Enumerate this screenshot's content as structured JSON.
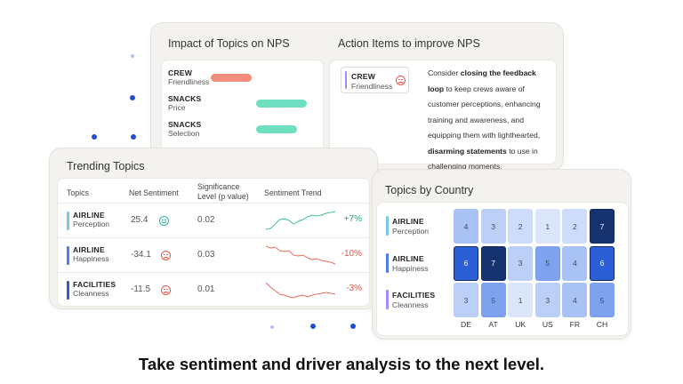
{
  "impact": {
    "title": "Impact of Topics on NPS",
    "rows": [
      {
        "main": "CREW",
        "sub": "Friendliness",
        "value": -2.3,
        "color": "#f48c7e"
      },
      {
        "main": "SNACKS",
        "sub": "Price",
        "value": 2.8,
        "color": "#6ee0c0"
      },
      {
        "main": "SNACKS",
        "sub": "Selection",
        "value": 2.3,
        "color": "#6ee0c0"
      }
    ],
    "ticks": [
      "-3",
      "-2",
      "-1",
      "0",
      "1",
      "2",
      "3"
    ],
    "range": [
      -3,
      3
    ]
  },
  "action": {
    "title": "Action Items to improve NPS",
    "chip": {
      "main": "CREW",
      "sub": "Friendliness"
    },
    "text_1": "Consider ",
    "bold_1": "closing the feedback loop",
    "text_2": " to keep crews aware of customer perceptions, enhancing training and awareness, and equipping them with lighthearted, ",
    "bold_2": "disarming statements",
    "text_3": " to use in challenging moments."
  },
  "trending": {
    "title": "Trending Topics",
    "headers": {
      "topics": "Topics",
      "nps": "Net Sentiment",
      "sig": "Significance Level (p value)",
      "trend": "Sentiment Trend"
    },
    "rows": [
      {
        "main": "AIRLINE",
        "sub": "Perception",
        "nps": "25.4",
        "sentiment": "happy",
        "sig": "0.02",
        "delta": "+7%",
        "delta_color": "#22a87a",
        "stripe": "#7cc7f0",
        "spark_color": "#3cc29a",
        "trend": [
          1,
          0.95,
          0.7,
          0.45,
          0.4,
          0.5,
          0.7,
          0.55,
          0.45,
          0.3,
          0.2,
          0.25,
          0.2,
          0.1,
          0.05,
          0
        ]
      },
      {
        "main": "AIRLINE",
        "sub": "Happiness",
        "nps": "-34.1",
        "sentiment": "sad",
        "sig": "0.03",
        "delta": "-10%",
        "delta_color": "#e8574a",
        "stripe": "#4d7fe8",
        "spark_color": "#ef6b5c",
        "trend": [
          0,
          0.1,
          0.05,
          0.25,
          0.3,
          0.25,
          0.5,
          0.55,
          0.5,
          0.65,
          0.75,
          0.7,
          0.8,
          0.85,
          0.9,
          1
        ]
      },
      {
        "main": "FACILITIES",
        "sub": "Cleanness",
        "nps": "-11.5",
        "sentiment": "sad",
        "sig": "0.01",
        "delta": "-3%",
        "delta_color": "#e8574a",
        "stripe": "#2f5cd8",
        "spark_color": "#ef6b5c",
        "trend": [
          0.1,
          0.35,
          0.55,
          0.75,
          0.8,
          0.9,
          0.95,
          0.85,
          0.8,
          0.9,
          0.8,
          0.75,
          0.7,
          0.65,
          0.7,
          0.75
        ]
      }
    ]
  },
  "country": {
    "title": "Topics by Country",
    "columns": [
      "DE",
      "AT",
      "UK",
      "US",
      "FR",
      "CH"
    ],
    "rows": [
      {
        "main": "AIRLINE",
        "sub": "Perception",
        "stripe": "#7cc7f0",
        "values": [
          "4",
          "3",
          "2",
          "1",
          "2",
          "7"
        ]
      },
      {
        "main": "AIRLINE",
        "sub": "Happiness",
        "stripe": "#4d7fe8",
        "values": [
          "6",
          "7",
          "3",
          "5",
          "4",
          "6"
        ]
      },
      {
        "main": "FACILITIES",
        "sub": "Cleanness",
        "stripe": "#a78bfa",
        "values": [
          "3",
          "5",
          "1",
          "3",
          "4",
          "5"
        ]
      }
    ]
  },
  "tagline": "Take sentiment and driver analysis to the next level."
}
